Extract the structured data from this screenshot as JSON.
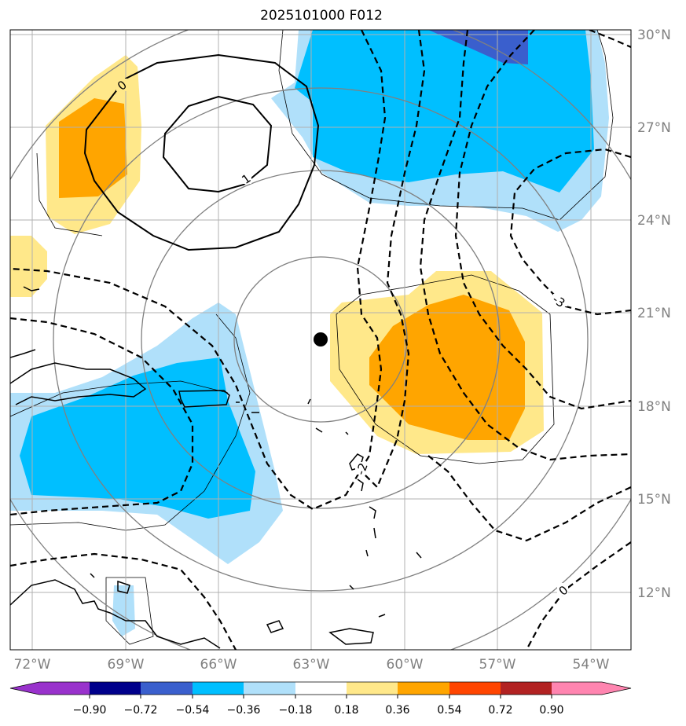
{
  "title": "2025101000 F012",
  "map": {
    "lon_range": [
      -73,
      -53
    ],
    "lat_range": [
      10,
      30
    ],
    "lon_ticks": [
      "72°W",
      "69°W",
      "66°W",
      "63°W",
      "60°W",
      "57°W",
      "54°W"
    ],
    "lat_ticks": [
      "30°N",
      "27°N",
      "24°N",
      "21°N",
      "18°N",
      "15°N",
      "12°N"
    ],
    "gridlines": true,
    "center_marker": {
      "lon": -62.6,
      "lat": 20.1
    },
    "contour_labels": [
      "0",
      "1",
      "-3",
      "-2",
      "0"
    ]
  },
  "colorbar": {
    "labels": [
      "−0.90",
      "−0.72",
      "−0.54",
      "−0.36",
      "−0.18",
      "0.18",
      "0.36",
      "0.54",
      "0.72",
      "0.90"
    ],
    "colors": [
      "#9932cc",
      "#00008b",
      "#3a5fcd",
      "#00bfff",
      "#b0e0fa",
      "#ffffff",
      "#ffe88a",
      "#ffa500",
      "#ff4500",
      "#b22222",
      "#ff85b0"
    ]
  },
  "colors": {
    "light_blue": "#b0e0fa",
    "blue": "#00bfff",
    "dark_blue": "#3a5fcd",
    "light_yellow": "#ffe88a",
    "orange": "#ffa500",
    "grid": "#b0b0b0",
    "ring": "#808080"
  }
}
